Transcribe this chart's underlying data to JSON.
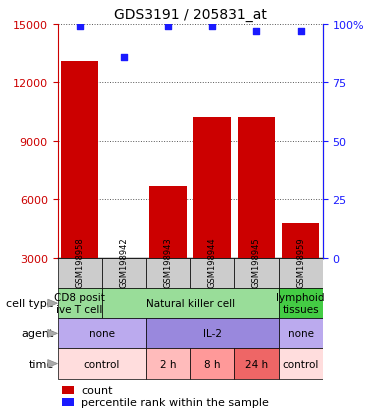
{
  "title": "GDS3191 / 205831_at",
  "samples": [
    "GSM198958",
    "GSM198942",
    "GSM198943",
    "GSM198944",
    "GSM198945",
    "GSM198959"
  ],
  "counts": [
    13100,
    2900,
    6700,
    10200,
    10200,
    4800
  ],
  "percentile_ranks": [
    99,
    86,
    99,
    99,
    97,
    97
  ],
  "ylim_left": [
    3000,
    15000
  ],
  "ylim_right": [
    0,
    100
  ],
  "yticks_left": [
    3000,
    6000,
    9000,
    12000,
    15000
  ],
  "yticks_right": [
    0,
    25,
    50,
    75,
    100
  ],
  "bar_color": "#cc0000",
  "dot_color": "#1a1aff",
  "bar_width": 0.85,
  "cell_type_cells": [
    {
      "text": "CD8 posit\nive T cell",
      "color": "#99dd99",
      "span": [
        0,
        1
      ]
    },
    {
      "text": "Natural killer cell",
      "color": "#99dd99",
      "span": [
        1,
        5
      ]
    },
    {
      "text": "lymphoid\ntissues",
      "color": "#44cc44",
      "span": [
        5,
        6
      ]
    }
  ],
  "agent_cells": [
    {
      "text": "none",
      "color": "#bbaaee",
      "span": [
        0,
        2
      ]
    },
    {
      "text": "IL-2",
      "color": "#9988dd",
      "span": [
        2,
        5
      ]
    },
    {
      "text": "none",
      "color": "#bbaaee",
      "span": [
        5,
        6
      ]
    }
  ],
  "time_cells": [
    {
      "text": "control",
      "color": "#ffdddd",
      "span": [
        0,
        2
      ]
    },
    {
      "text": "2 h",
      "color": "#ffbbbb",
      "span": [
        2,
        3
      ]
    },
    {
      "text": "8 h",
      "color": "#ff9999",
      "span": [
        3,
        4
      ]
    },
    {
      "text": "24 h",
      "color": "#ee6666",
      "span": [
        4,
        5
      ]
    },
    {
      "text": "control",
      "color": "#ffdddd",
      "span": [
        5,
        6
      ]
    }
  ],
  "row_labels": [
    "cell type",
    "agent",
    "time"
  ],
  "legend_count_color": "#cc0000",
  "legend_pct_color": "#1a1aff",
  "axis_color_left": "#cc0000",
  "axis_color_right": "#1a1aff",
  "sample_box_color": "#cccccc",
  "grid_color": "#555555",
  "title_fontsize": 10,
  "tick_fontsize": 8,
  "label_fontsize": 8,
  "cell_fontsize": 7.5,
  "legend_fontsize": 8
}
